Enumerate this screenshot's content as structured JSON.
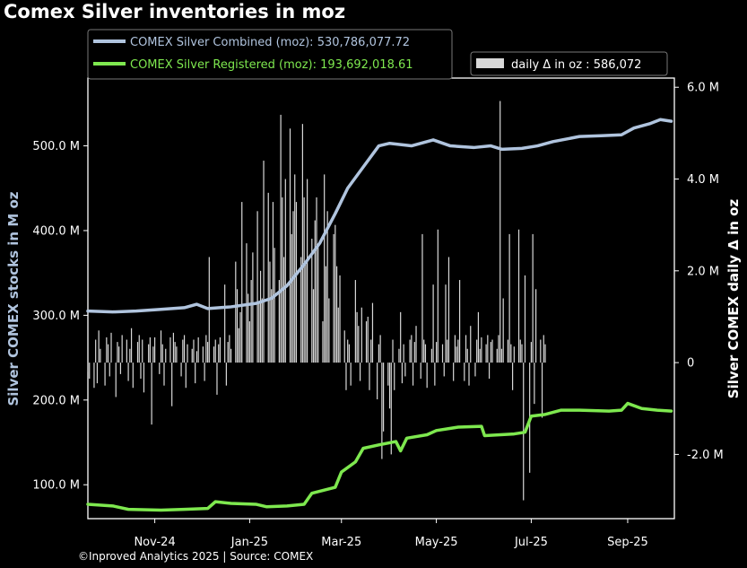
{
  "chart_data": {
    "type": "line",
    "title": "Comex Silver inventories in moz",
    "footer": "©Inproved Analytics 2025 | Source: COMEX",
    "ylabel_left": "Silver COMEX stocks in M oz",
    "ylabel_right": "Silver COMEX daily Δ in oz",
    "x_ticks": [
      "Nov-24",
      "Jan-25",
      "Mar-25",
      "May-25",
      "Jul-25",
      "Sep-25"
    ],
    "y_left_ticks": [
      "100.0 M",
      "200.0 M",
      "300.0 M",
      "400.0 M",
      "500.0 M"
    ],
    "y_right_ticks": [
      "-2.0 M",
      "0",
      "2.0 M",
      "4.0 M",
      "6.0 M"
    ],
    "ylim_left": [
      60,
      580
    ],
    "ylim_right": [
      -3.4,
      6.2
    ],
    "x_range": [
      "2024-09-19",
      "2025-10-01"
    ],
    "legend": {
      "combined": "COMEX Silver Combined (moz): 530,786,077.72",
      "registered": "COMEX Silver Registered (moz): 193,692,018.61",
      "daily": "daily Δ in oz : 586,072"
    },
    "colors": {
      "combined": "#b0c4de",
      "registered": "#7ee84f",
      "daily": "#d8d8d8",
      "background": "#000000",
      "axes": "#ffffff"
    },
    "series": [
      {
        "name": "COMEX Silver Combined (moz)",
        "points": [
          [
            "2024-09-19",
            305
          ],
          [
            "2024-10-05",
            304
          ],
          [
            "2024-10-20",
            305
          ],
          [
            "2024-11-05",
            307
          ],
          [
            "2024-11-20",
            309
          ],
          [
            "2024-11-28",
            313
          ],
          [
            "2024-12-05",
            308
          ],
          [
            "2024-12-20",
            310
          ],
          [
            "2025-01-05",
            314
          ],
          [
            "2025-01-15",
            320
          ],
          [
            "2025-01-25",
            335
          ],
          [
            "2025-02-05",
            360
          ],
          [
            "2025-02-15",
            385
          ],
          [
            "2025-02-25",
            420
          ],
          [
            "2025-03-05",
            450
          ],
          [
            "2025-03-15",
            475
          ],
          [
            "2025-03-25",
            500
          ],
          [
            "2025-04-01",
            503
          ],
          [
            "2025-04-15",
            500
          ],
          [
            "2025-04-29",
            507
          ],
          [
            "2025-05-10",
            500
          ],
          [
            "2025-05-25",
            498
          ],
          [
            "2025-06-05",
            500
          ],
          [
            "2025-06-12",
            496
          ],
          [
            "2025-06-25",
            497
          ],
          [
            "2025-07-05",
            500
          ],
          [
            "2025-07-15",
            505
          ],
          [
            "2025-08-01",
            511
          ],
          [
            "2025-08-15",
            512
          ],
          [
            "2025-08-28",
            513
          ],
          [
            "2025-09-05",
            521
          ],
          [
            "2025-09-15",
            526
          ],
          [
            "2025-09-22",
            531
          ],
          [
            "2025-09-29",
            529
          ]
        ]
      },
      {
        "name": "COMEX Silver Registered (moz)",
        "points": [
          [
            "2024-09-19",
            77
          ],
          [
            "2024-10-05",
            75
          ],
          [
            "2024-10-15",
            71
          ],
          [
            "2024-11-05",
            70
          ],
          [
            "2024-11-20",
            71
          ],
          [
            "2024-12-05",
            72
          ],
          [
            "2024-12-10",
            80
          ],
          [
            "2024-12-20",
            78
          ],
          [
            "2025-01-05",
            77
          ],
          [
            "2025-01-12",
            74
          ],
          [
            "2025-01-25",
            75
          ],
          [
            "2025-02-05",
            77
          ],
          [
            "2025-02-10",
            90
          ],
          [
            "2025-02-25",
            97
          ],
          [
            "2025-03-01",
            115
          ],
          [
            "2025-03-10",
            127
          ],
          [
            "2025-03-15",
            143
          ],
          [
            "2025-03-25",
            147
          ],
          [
            "2025-04-05",
            151
          ],
          [
            "2025-04-08",
            140
          ],
          [
            "2025-04-12",
            155
          ],
          [
            "2025-04-25",
            159
          ],
          [
            "2025-05-01",
            164
          ],
          [
            "2025-05-15",
            168
          ],
          [
            "2025-05-30",
            169
          ],
          [
            "2025-06-01",
            158
          ],
          [
            "2025-06-20",
            160
          ],
          [
            "2025-06-27",
            162
          ],
          [
            "2025-07-01",
            181
          ],
          [
            "2025-07-10",
            183
          ],
          [
            "2025-07-20",
            188
          ],
          [
            "2025-08-01",
            188
          ],
          [
            "2025-08-20",
            187
          ],
          [
            "2025-08-28",
            188
          ],
          [
            "2025-09-01",
            196
          ],
          [
            "2025-09-10",
            190
          ],
          [
            "2025-09-20",
            188
          ],
          [
            "2025-09-29",
            187
          ]
        ]
      },
      {
        "name": "daily Δ in oz",
        "type": "bar",
        "values_moz": [
          -0.2,
          -0.35,
          -0.55,
          0.5,
          -0.45,
          0.7,
          0.3,
          -0.5,
          0.55,
          0.4,
          -0.3,
          0.65,
          -0.75,
          0.45,
          0.35,
          -0.25,
          0.6,
          0.5,
          -0.4,
          0.3,
          0.75,
          -0.55,
          0.45,
          0.6,
          -0.35,
          0.5,
          -0.65,
          0.4,
          0.55,
          -1.35,
          0.35,
          0.55,
          -0.25,
          0.7,
          0.4,
          -0.5,
          0.3,
          0.55,
          -0.95,
          0.65,
          0.45,
          0.35,
          -0.3,
          0.5,
          0.6,
          -0.55,
          0.4,
          0.3,
          0.5,
          -0.45,
          0.25,
          0.55,
          0.35,
          -0.4,
          0.6,
          0.45,
          2.3,
          0.35,
          0.5,
          -0.7,
          0.4,
          0.55,
          1.7,
          -0.5,
          0.45,
          0.6,
          0.3,
          2.2,
          1.6,
          0.75,
          1.1,
          3.5,
          2.6,
          1.5,
          0.9,
          1.8,
          2.4,
          3.3,
          1.3,
          2.0,
          1.4,
          4.4,
          3.7,
          2.2,
          1.6,
          3.5,
          2.5,
          1.8,
          5.4,
          3.6,
          2.3,
          4.0,
          5.1,
          2.8,
          3.3,
          4.1,
          3.5,
          2.3,
          5.2,
          3.6,
          2.2,
          4.0,
          2.7,
          1.6,
          3.1,
          3.6,
          2.6,
          0.9,
          4.1,
          2.1,
          3.3,
          1.4,
          2.8,
          3.0,
          2.1,
          1.2,
          1.9,
          0.7,
          -0.6,
          0.5,
          0.4,
          -0.5,
          1.8,
          1.1,
          0.8,
          -0.4,
          1.2,
          0.9,
          1.0,
          -0.6,
          0.5,
          1.3,
          -0.8,
          0.4,
          0.6,
          -2.1,
          -1.5,
          -0.5,
          -1.0,
          -2.0,
          0.5,
          -0.6,
          0.3,
          1.1,
          -0.45,
          0.4,
          -0.3,
          0.5,
          0.6,
          -0.5,
          0.45,
          0.8,
          -0.35,
          2.8,
          0.5,
          0.4,
          -0.55,
          0.3,
          1.7,
          -0.5,
          0.45,
          2.9,
          0.4,
          -0.3,
          1.7,
          0.5,
          2.3,
          -0.4,
          0.6,
          0.35,
          0.5,
          1.8,
          -0.4,
          0.6,
          0.3,
          -0.5,
          0.8,
          -0.3,
          0.5,
          1.1,
          0.3,
          0.55,
          0.4,
          0.6,
          -0.35,
          0.45,
          0.5,
          0.3,
          0.6,
          5.7,
          0.3,
          1.4,
          0.5,
          2.8,
          0.4,
          -0.6,
          0.35,
          2.9,
          0.5,
          0.4,
          -3.0,
          1.9,
          -2.4,
          0.45,
          2.8,
          -0.9,
          1.6,
          0.5,
          -1.2,
          0.6,
          0.4
        ]
      }
    ]
  }
}
